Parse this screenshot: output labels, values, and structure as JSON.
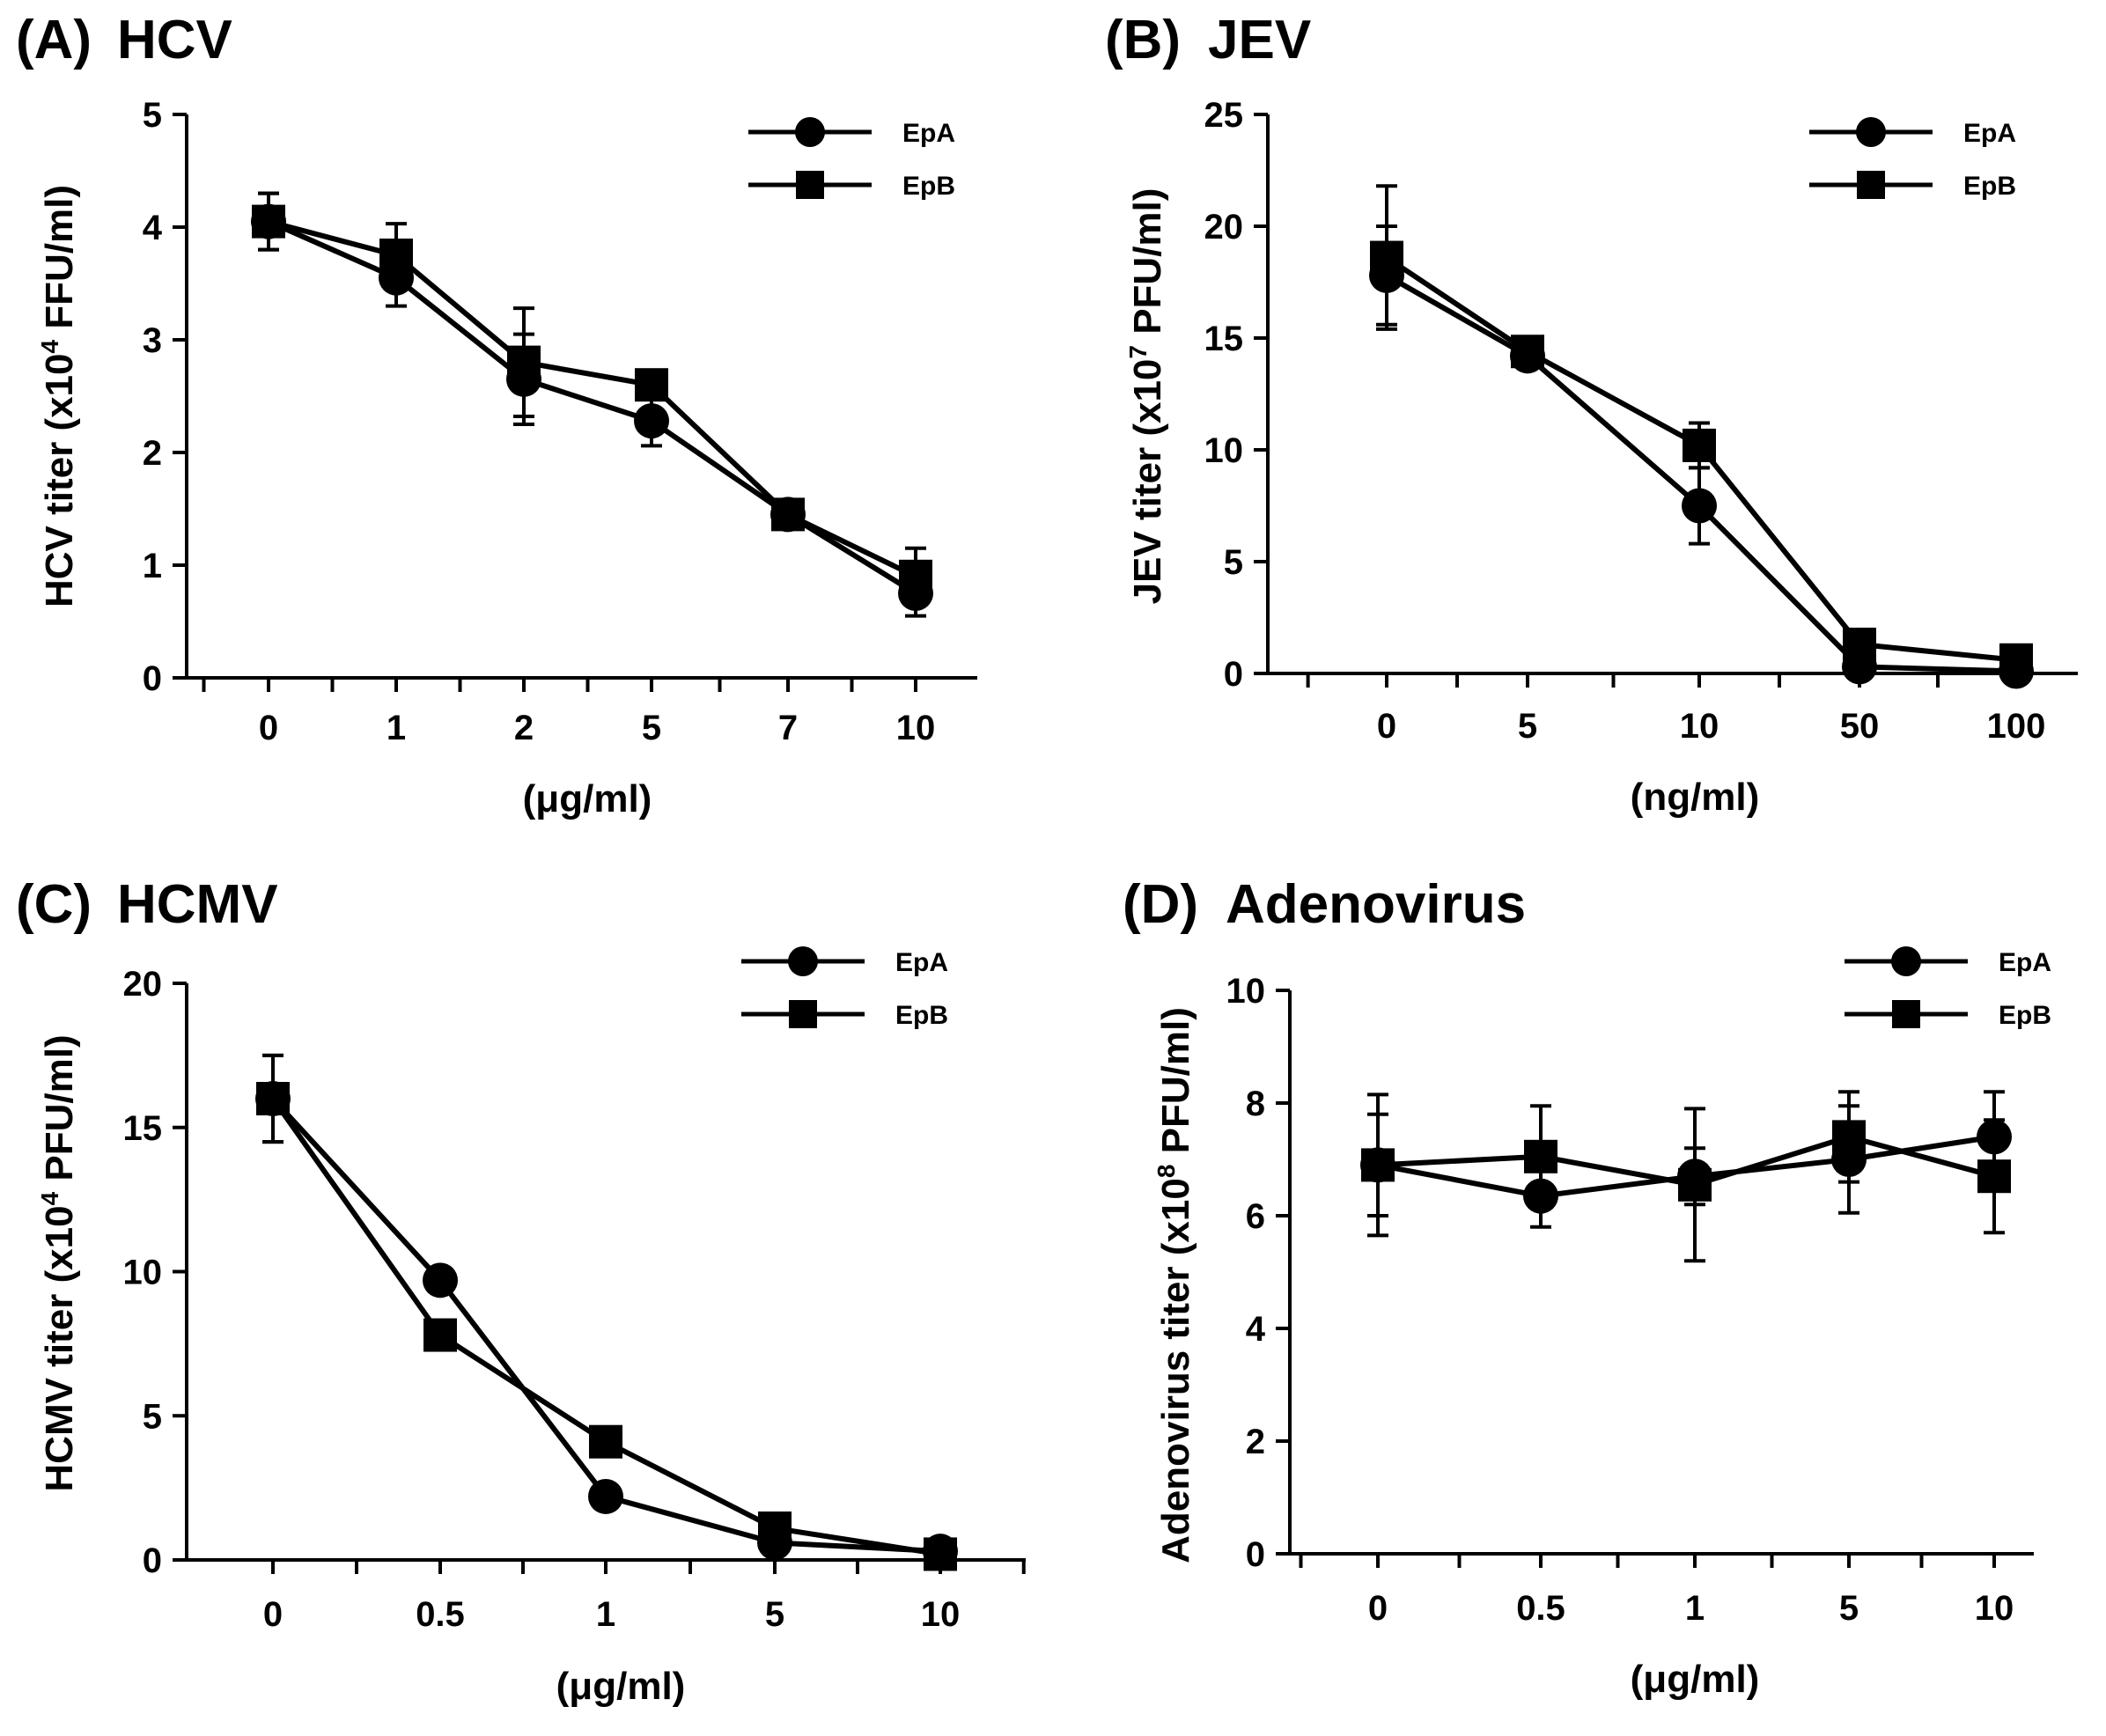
{
  "chart_data": [
    {
      "type": "line",
      "panel_label": "(A)",
      "title": "HCV",
      "ylabel": "HCV titer (x10",
      "ylabel_exp": "4",
      "ylabel_unit": "FFU/ml)",
      "xlabel": "(μg/ml)",
      "categories": [
        "0",
        "1",
        "2",
        "5",
        "7",
        "10"
      ],
      "ylim": [
        0,
        5
      ],
      "yticks": [
        "0",
        "1",
        "2",
        "3",
        "4",
        "5"
      ],
      "legend": "top-right",
      "series": [
        {
          "name": "EpA",
          "marker": "circle",
          "values": [
            4.05,
            3.55,
            2.65,
            2.28,
            1.45,
            0.75
          ],
          "errors": [
            0.25,
            0.25,
            0.4,
            0.22,
            0.12,
            0.2
          ]
        },
        {
          "name": "EpB",
          "marker": "square",
          "values": [
            4.05,
            3.75,
            2.8,
            2.6,
            1.45,
            0.9
          ],
          "errors": [
            0.25,
            0.28,
            0.48,
            0.1,
            0.1,
            0.25
          ]
        }
      ]
    },
    {
      "type": "line",
      "panel_label": "(B)",
      "title": "JEV",
      "ylabel": "JEV titer (x10",
      "ylabel_exp": "7",
      "ylabel_unit": "PFU/ml)",
      "xlabel": "(ng/ml)",
      "categories": [
        "0",
        "5",
        "10",
        "50",
        "100"
      ],
      "ylim": [
        0,
        25
      ],
      "yticks": [
        "0",
        "5",
        "10",
        "15",
        "20",
        "25"
      ],
      "legend": "top-right",
      "series": [
        {
          "name": "EpA",
          "marker": "circle",
          "values": [
            17.8,
            14.2,
            7.5,
            0.3,
            0.1
          ],
          "errors": [
            2.2,
            0.5,
            1.7,
            0.3,
            0.1
          ]
        },
        {
          "name": "EpB",
          "marker": "square",
          "values": [
            18.6,
            14.4,
            10.2,
            1.3,
            0.6
          ],
          "errors": [
            3.2,
            0.5,
            1.0,
            0.4,
            0.3
          ]
        }
      ]
    },
    {
      "type": "line",
      "panel_label": "(C)",
      "title": "HCMV",
      "ylabel": "HCMV titer (x10",
      "ylabel_exp": "4",
      "ylabel_unit": "PFU/ml)",
      "xlabel": "(μg/ml)",
      "categories": [
        "0",
        "0.5",
        "1",
        "5",
        "10"
      ],
      "ylim": [
        0,
        20
      ],
      "yticks": [
        "0",
        "5",
        "10",
        "15",
        "20"
      ],
      "legend": "top-right",
      "series": [
        {
          "name": "EpA",
          "marker": "circle",
          "values": [
            16.0,
            9.7,
            2.2,
            0.6,
            0.3
          ],
          "errors": [
            1.5,
            0.4,
            0.4,
            0.2,
            0.1
          ]
        },
        {
          "name": "EpB",
          "marker": "square",
          "values": [
            16.0,
            7.8,
            4.1,
            1.1,
            0.2
          ],
          "errors": [
            1.5,
            0.4,
            0.4,
            0.2,
            0.1
          ]
        }
      ]
    },
    {
      "type": "line",
      "panel_label": "(D)",
      "title": "Adenovirus",
      "ylabel": "Adenovirus titer (x10",
      "ylabel_exp": "8",
      "ylabel_unit": "PFU/ml)",
      "xlabel": "(μg/ml)",
      "categories": [
        "0",
        "0.5",
        "1",
        "5",
        "10"
      ],
      "ylim": [
        0,
        10
      ],
      "yticks": [
        "0",
        "2",
        "4",
        "6",
        "8",
        "10"
      ],
      "legend": "top-right",
      "series": [
        {
          "name": "EpA",
          "marker": "circle",
          "values": [
            6.9,
            6.35,
            6.7,
            7.0,
            7.4
          ],
          "errors": [
            0.9,
            0.55,
            0.5,
            0.95,
            0.8
          ]
        },
        {
          "name": "EpB",
          "marker": "square",
          "values": [
            6.9,
            7.05,
            6.55,
            7.4,
            6.7
          ],
          "errors": [
            1.25,
            0.9,
            1.35,
            0.8,
            1.0
          ]
        }
      ]
    }
  ]
}
